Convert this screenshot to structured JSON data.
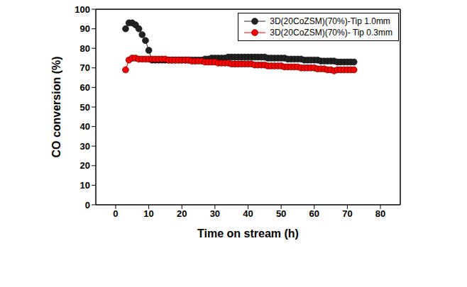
{
  "chart_data": {
    "type": "line",
    "x_label": "Time on stream (h)",
    "y_label": "CO conversion (%)",
    "xlim": [
      -6,
      86
    ],
    "xticks": [
      0,
      10,
      20,
      30,
      40,
      50,
      60,
      70,
      80
    ],
    "ylim": [
      0,
      100
    ],
    "yticks": [
      0,
      10,
      20,
      30,
      40,
      50,
      60,
      70,
      80,
      90,
      100
    ],
    "legend": "upper right",
    "x": [
      3,
      4,
      5,
      6,
      7,
      8,
      9,
      10,
      11,
      12,
      13,
      14,
      15,
      16,
      17,
      18,
      19,
      20,
      21,
      22,
      23,
      24,
      25,
      26,
      27,
      28,
      29,
      30,
      31,
      32,
      33,
      34,
      35,
      36,
      37,
      38,
      39,
      40,
      41,
      42,
      43,
      44,
      45,
      46,
      47,
      48,
      49,
      50,
      51,
      52,
      53,
      54,
      55,
      56,
      57,
      58,
      59,
      60,
      61,
      62,
      63,
      64,
      65,
      66,
      67,
      68,
      69,
      70,
      71,
      72
    ],
    "series": [
      {
        "name": "3D(20CoZSM)(70%)-Tip 1.0mm",
        "color": "#222222",
        "marker": "circle",
        "values": [
          90,
          93,
          93,
          92,
          90,
          87,
          84,
          79,
          74,
          74,
          74,
          74,
          74,
          74,
          74,
          74,
          74,
          74,
          74,
          74,
          74,
          74,
          74,
          74,
          74.5,
          74.5,
          75,
          75,
          75,
          75,
          75,
          75.5,
          75.5,
          75.5,
          75.5,
          75.5,
          75.5,
          75.5,
          75.5,
          75.5,
          75.5,
          75.5,
          75.5,
          75,
          75,
          75,
          75,
          75,
          75,
          74.5,
          74.5,
          74.5,
          74.5,
          74.5,
          74,
          74,
          74,
          74,
          74,
          73.5,
          73.5,
          73.5,
          73.5,
          73.5,
          73,
          73,
          73,
          73,
          73,
          73
        ]
      },
      {
        "name": "3D(20CoZSM)(70%)- Tip 0.3mm",
        "color": "#ff0000",
        "marker": "circle",
        "values": [
          69,
          74,
          75,
          75,
          74.5,
          74.5,
          74.5,
          74.5,
          74.5,
          74.5,
          74.5,
          74.5,
          74.5,
          74,
          74,
          74,
          74,
          74,
          74,
          74,
          73.5,
          73.5,
          73.5,
          73.5,
          73,
          73,
          73,
          73,
          72.5,
          72.5,
          72.5,
          72.5,
          72,
          72,
          72,
          72,
          72,
          72,
          72,
          71.5,
          71.5,
          71.5,
          71.5,
          71,
          71,
          71,
          71,
          71,
          70.5,
          70.5,
          70.5,
          70.5,
          70.5,
          70,
          70,
          70,
          70,
          70,
          69.5,
          69.5,
          69.5,
          69,
          69,
          68.5,
          69,
          69,
          69,
          69,
          69,
          69
        ]
      }
    ]
  }
}
